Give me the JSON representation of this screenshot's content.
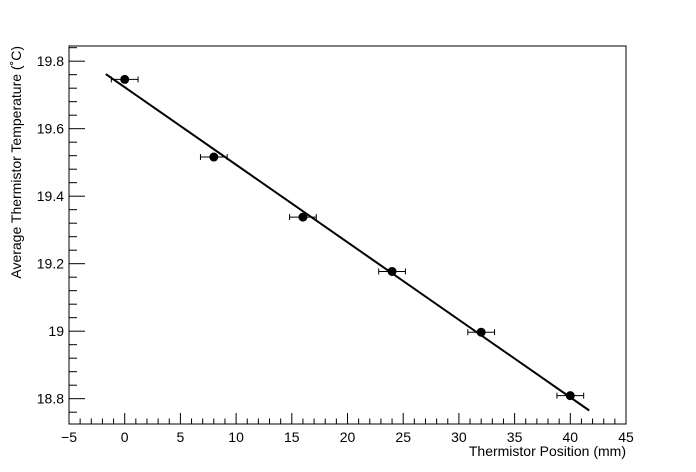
{
  "chart_data": {
    "type": "scatter",
    "title": "",
    "xlabel": "Thermistor Position (mm)",
    "ylabel": "Average Thermistor Temperature (˚C)",
    "xlim": [
      -5,
      45
    ],
    "ylim": [
      18.725,
      19.845
    ],
    "grid": false,
    "x_ticks": [
      -5,
      0,
      5,
      10,
      15,
      20,
      25,
      30,
      35,
      40,
      45
    ],
    "x_tick_labels": [
      "−5",
      "0",
      "5",
      "10",
      "15",
      "20",
      "25",
      "30",
      "35",
      "40",
      "45"
    ],
    "y_ticks": [
      18.8,
      19.0,
      19.2,
      19.4,
      19.6,
      19.8
    ],
    "y_tick_labels": [
      "18.8",
      "19",
      "19.2",
      "19.4",
      "19.6",
      "19.8"
    ],
    "series": [
      {
        "type": "scatter",
        "x": [
          0,
          8,
          16,
          24,
          32,
          40
        ],
        "y": [
          19.746,
          19.516,
          19.338,
          19.177,
          18.997,
          18.809
        ],
        "x_err": [
          1.2,
          1.2,
          1.2,
          1.2,
          1.2,
          1.2
        ],
        "y_err": [
          0.0,
          0.0,
          0.0,
          0.0,
          0.0,
          0.0
        ],
        "color": "#000000"
      },
      {
        "type": "line",
        "x": [
          -1.7,
          41.7
        ],
        "y": [
          19.762,
          18.765
        ],
        "color": "#000000"
      }
    ]
  }
}
